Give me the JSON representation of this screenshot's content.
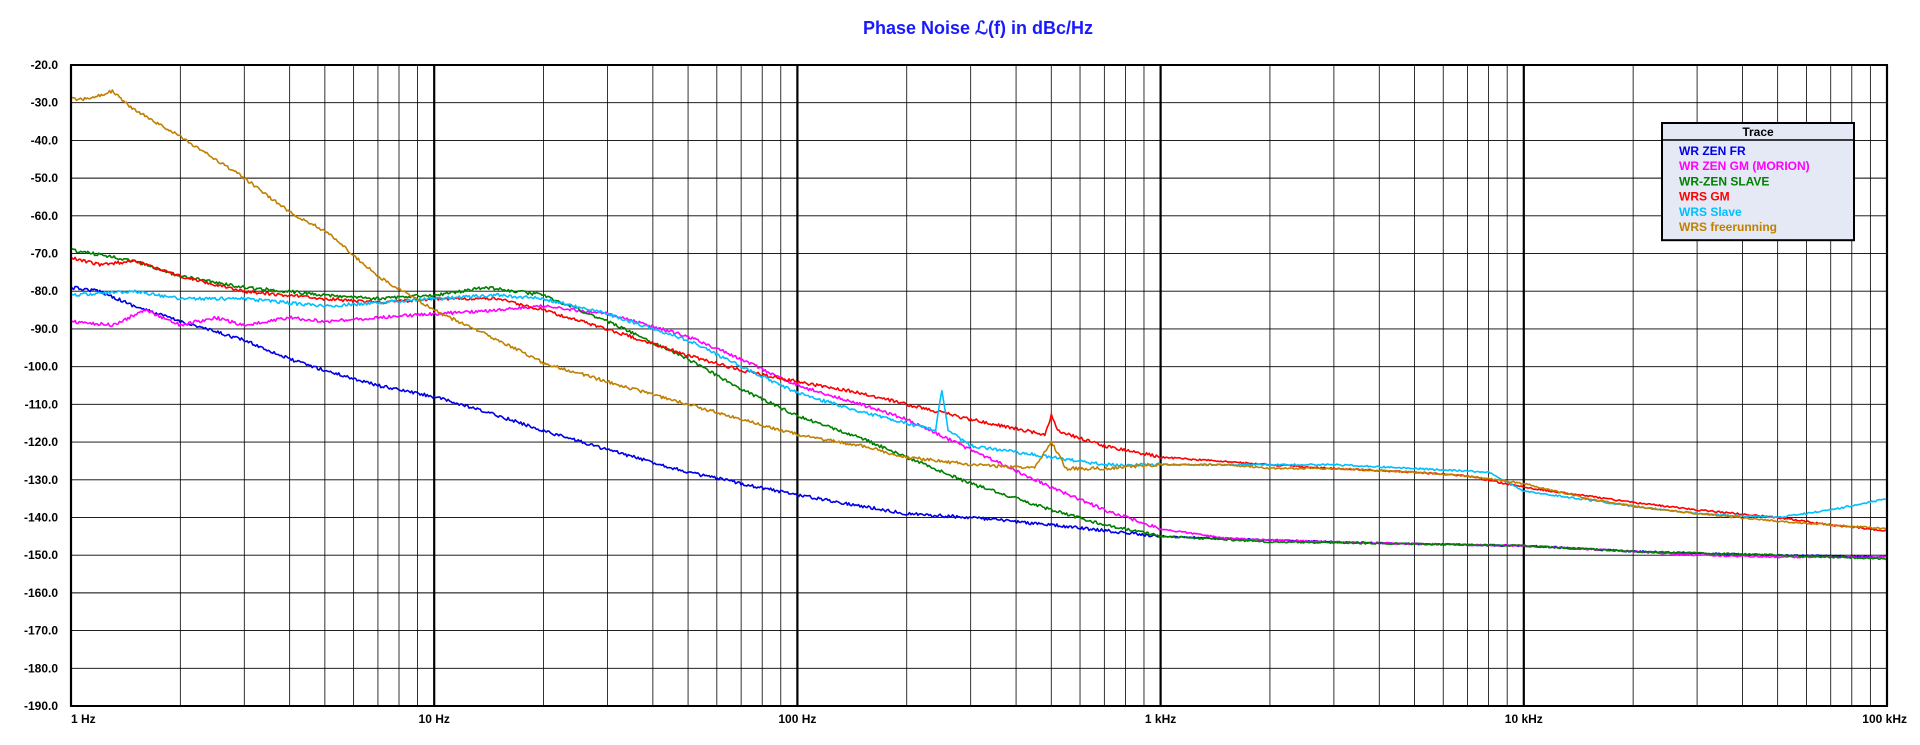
{
  "chart_data": {
    "type": "line",
    "title": "Phase Noise ℒ(f) in dBc/Hz",
    "xscale": "log",
    "xlim": [
      1,
      100000
    ],
    "ylim": [
      -190,
      -20
    ],
    "grid": true,
    "legend_title": "Trace",
    "legend_position": "top-right",
    "x_tick_labels": [
      {
        "x": 1,
        "label": "1 Hz"
      },
      {
        "x": 10,
        "label": "10 Hz"
      },
      {
        "x": 100,
        "label": "100 Hz"
      },
      {
        "x": 1000,
        "label": "1 kHz"
      },
      {
        "x": 10000,
        "label": "10 kHz"
      },
      {
        "x": 100000,
        "label": "100 kHz"
      }
    ],
    "y_tick_labels": [
      {
        "y": -20,
        "label": "-20.0"
      },
      {
        "y": -30,
        "label": "-30.0"
      },
      {
        "y": -40,
        "label": "-40.0"
      },
      {
        "y": -50,
        "label": "-50.0"
      },
      {
        "y": -60,
        "label": "-60.0"
      },
      {
        "y": -70,
        "label": "-70.0"
      },
      {
        "y": -80,
        "label": "-80.0"
      },
      {
        "y": -90,
        "label": "-90.0"
      },
      {
        "y": -100,
        "label": "-100.0"
      },
      {
        "y": -110,
        "label": "-110.0"
      },
      {
        "y": -120,
        "label": "-120.0"
      },
      {
        "y": -130,
        "label": "-130.0"
      },
      {
        "y": -140,
        "label": "-140.0"
      },
      {
        "y": -150,
        "label": "-150.0"
      },
      {
        "y": -160,
        "label": "-160.0"
      },
      {
        "y": -170,
        "label": "-170.0"
      },
      {
        "y": -180,
        "label": "-180.0"
      },
      {
        "y": -190,
        "label": "-190.0"
      }
    ],
    "series": [
      {
        "name": "WR ZEN FR",
        "color": "#0000e6",
        "x": [
          1,
          1.2,
          1.5,
          2,
          3,
          4,
          5,
          7,
          10,
          15,
          20,
          30,
          50,
          70,
          100,
          150,
          200,
          300,
          500,
          700,
          1000,
          2000,
          3000,
          5000,
          10000,
          20000,
          50000,
          100000
        ],
        "y": [
          -79,
          -80,
          -84,
          -88,
          -93,
          -98,
          -101,
          -105,
          -108,
          -113,
          -117,
          -122,
          -128,
          -131,
          -134,
          -137,
          -139,
          -140,
          -142,
          -143.5,
          -145,
          -146,
          -146.5,
          -147,
          -147.5,
          -149,
          -150,
          -150.5
        ]
      },
      {
        "name": "WR ZEN GM (MORION)",
        "color": "#ff00ff",
        "x": [
          1,
          1.3,
          1.6,
          2,
          2.5,
          3,
          4,
          5,
          7,
          10,
          15,
          20,
          30,
          50,
          70,
          100,
          150,
          200,
          300,
          500,
          700,
          1000,
          1500,
          2000,
          3000,
          5000,
          10000,
          20000,
          30000,
          50000,
          100000
        ],
        "y": [
          -88,
          -89,
          -85,
          -89,
          -87,
          -89,
          -87,
          -88,
          -87,
          -86,
          -85,
          -84,
          -86,
          -92,
          -98,
          -105,
          -110,
          -114,
          -122,
          -132,
          -138,
          -143,
          -145.5,
          -146,
          -146.5,
          -147,
          -147.5,
          -149,
          -150,
          -150.5,
          -150.5
        ]
      },
      {
        "name": "WR-ZEN SLAVE",
        "color": "#008000",
        "x": [
          1,
          1.5,
          2,
          3,
          5,
          7,
          10,
          14,
          20,
          30,
          50,
          70,
          100,
          150,
          200,
          300,
          500,
          700,
          1000,
          2000,
          5000,
          10000,
          20000,
          50000,
          100000
        ],
        "y": [
          -69,
          -72,
          -76,
          -79,
          -81,
          -82,
          -81,
          -79,
          -81,
          -88,
          -98,
          -106,
          -113,
          -119,
          -124,
          -131,
          -138,
          -142,
          -145,
          -146.5,
          -147,
          -147.5,
          -149,
          -150,
          -151
        ]
      },
      {
        "name": "WRS GM",
        "color": "#ff0000",
        "x": [
          1,
          1.2,
          1.5,
          2,
          3,
          5,
          7,
          10,
          15,
          20,
          30,
          50,
          70,
          100,
          150,
          200,
          300,
          480,
          500,
          520,
          700,
          1000,
          2000,
          3000,
          5000,
          7000,
          10000,
          20000,
          30000,
          50000,
          70000,
          100000
        ],
        "y": [
          -71,
          -73,
          -72,
          -76,
          -80,
          -82,
          -83,
          -82,
          -82,
          -85,
          -90,
          -97,
          -101,
          -104,
          -107,
          -110,
          -114,
          -118,
          -113,
          -117,
          -121,
          -124,
          -126,
          -127,
          -128,
          -129,
          -132,
          -136,
          -138,
          -140,
          -142,
          -143.5
        ]
      },
      {
        "name": "WRS Slave",
        "color": "#00bfff",
        "x": [
          1,
          1.5,
          2,
          3,
          5,
          7,
          10,
          15,
          20,
          30,
          50,
          70,
          100,
          150,
          200,
          240,
          250,
          260,
          300,
          500,
          700,
          1000,
          1500,
          3000,
          5000,
          8000,
          10000,
          20000,
          30000,
          50000,
          70000,
          100000
        ],
        "y": [
          -81,
          -80,
          -82,
          -82,
          -84,
          -83,
          -82,
          -81,
          -82,
          -86,
          -93,
          -100,
          -107,
          -112,
          -115,
          -117,
          -106,
          -117,
          -121,
          -124,
          -126,
          -126,
          -126,
          -126,
          -127,
          -128,
          -133,
          -137,
          -139,
          -140,
          -138,
          -135
        ]
      },
      {
        "name": "WRS freerunning",
        "color": "#c08000",
        "x": [
          1,
          1.1,
          1.3,
          1.5,
          2,
          3,
          4,
          5,
          7,
          10,
          15,
          20,
          30,
          50,
          70,
          100,
          150,
          200,
          300,
          450,
          500,
          550,
          700,
          1000,
          1500,
          2000,
          3000,
          5000,
          7000,
          10000,
          15000,
          20000,
          30000,
          50000,
          100000
        ],
        "y": [
          -29,
          -29,
          -27,
          -32,
          -39,
          -50,
          -59,
          -64,
          -76,
          -85,
          -93,
          -99,
          -104,
          -110,
          -114,
          -118,
          -121,
          -124,
          -126,
          -127,
          -120,
          -127,
          -127,
          -126,
          -126,
          -127,
          -127,
          -128,
          -129,
          -131,
          -135,
          -137,
          -139,
          -141,
          -143
        ]
      }
    ]
  }
}
